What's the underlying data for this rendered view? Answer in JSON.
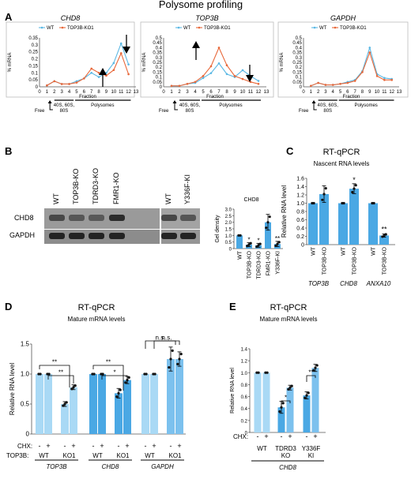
{
  "figure_title": "Polysome profiling",
  "colors": {
    "wt": "#5bb8e4",
    "ko": "#e8683a",
    "bar_light": "#a9d9f5",
    "bar_dark": "#4aa8e4",
    "dot": "#111111"
  },
  "panel_a": {
    "letter": "A",
    "xlabel": "Fraction",
    "ylabel": "% mRNA",
    "free_label": "Free",
    "subunit_label": "40S, 60S,",
    "subunit_label2": "80S",
    "polysome_label": "Polysomes"
  },
  "panel_b": {
    "letter": "B",
    "lanes": [
      "WT",
      "TOP3B-KO",
      "TDRD3-KO",
      "FMR1-KO",
      "WT",
      "Y336F-KI"
    ],
    "rows": [
      "CHD8",
      "GAPDH"
    ],
    "stars": [
      "*",
      "*",
      "",
      "**"
    ]
  },
  "panel_c": {
    "letter": "C",
    "title": "RT-qPCR",
    "subtitle": "Nascent RNA levels",
    "stars": [
      "*",
      "**"
    ]
  },
  "panel_d": {
    "letter": "D",
    "title": "RT-qPCR",
    "subtitle": "Mature mRNA levels",
    "chx_label": "CHX:",
    "top3b_label": "TOP3B:",
    "minus": "-",
    "plus": "+",
    "wt": "WT",
    "ko1": "KO1",
    "brackets": [
      "**",
      "**",
      "**",
      "*",
      "n.s.",
      "n.s."
    ]
  },
  "panel_e": {
    "letter": "E",
    "title": "RT-qPCR",
    "subtitle": "Mature mRNA levels",
    "chx_label": "CHX:",
    "minus": "-",
    "plus": "+",
    "groups": [
      "WT",
      "TDRD3",
      "KO",
      "Y336F",
      "KI"
    ],
    "gene": "CHD8",
    "stars": [
      "*",
      "**"
    ]
  },
  "chart_data": [
    {
      "type": "line",
      "title": "CHD8",
      "xlabel": "Fraction",
      "ylabel": "% mRNA",
      "x": [
        1,
        2,
        3,
        4,
        5,
        6,
        7,
        8,
        9,
        10,
        11,
        12
      ],
      "xlim": [
        0,
        13
      ],
      "ylim": [
        0,
        0.35
      ],
      "yticks": [
        "0",
        "0.05",
        "0.1",
        "0.15",
        "0.2",
        "0.25",
        "0.3",
        "0.35"
      ],
      "series": [
        {
          "name": "WT",
          "values": [
            0.01,
            0.04,
            0.02,
            0.02,
            0.04,
            0.06,
            0.1,
            0.07,
            0.1,
            0.17,
            0.31,
            0.16
          ]
        },
        {
          "name": "TOP3B-KO1",
          "values": [
            0.01,
            0.04,
            0.02,
            0.02,
            0.03,
            0.06,
            0.13,
            0.1,
            0.08,
            0.12,
            0.24,
            0.09
          ]
        }
      ]
    },
    {
      "type": "line",
      "title": "TOP3B",
      "xlabel": "Fraction",
      "ylabel": "% mRNA",
      "x": [
        1,
        2,
        3,
        4,
        5,
        6,
        7,
        8,
        9,
        10,
        11,
        12
      ],
      "xlim": [
        0,
        13
      ],
      "ylim": [
        0,
        0.5
      ],
      "yticks": [
        "0",
        "0.05",
        "0.1",
        "0.15",
        "0.2",
        "0.25",
        "0.3",
        "0.35",
        "0.4",
        "0.45",
        "0.5"
      ],
      "series": [
        {
          "name": "WT",
          "values": [
            0.01,
            0.01,
            0.03,
            0.04,
            0.09,
            0.14,
            0.24,
            0.13,
            0.1,
            0.17,
            0.11,
            0.06
          ]
        },
        {
          "name": "TOP3B-KO1",
          "values": [
            0.01,
            0.01,
            0.03,
            0.05,
            0.11,
            0.21,
            0.4,
            0.22,
            0.11,
            0.08,
            0.05,
            0.03
          ]
        }
      ]
    },
    {
      "type": "line",
      "title": "GAPDH",
      "xlabel": "Fraction",
      "ylabel": "% mRNA",
      "x": [
        1,
        2,
        3,
        4,
        5,
        6,
        7,
        8,
        9,
        10,
        11,
        12
      ],
      "xlim": [
        0,
        13
      ],
      "ylim": [
        0,
        0.5
      ],
      "yticks": [
        "0",
        "0.05",
        "0.1",
        "0.15",
        "0.2",
        "0.25",
        "0.3",
        "0.35",
        "0.4",
        "0.45",
        "0.5"
      ],
      "series": [
        {
          "name": "WT",
          "values": [
            0.01,
            0.04,
            0.02,
            0.02,
            0.03,
            0.05,
            0.07,
            0.16,
            0.4,
            0.13,
            0.09,
            0.08
          ]
        },
        {
          "name": "TOP3B-KO1",
          "values": [
            0.01,
            0.04,
            0.02,
            0.02,
            0.03,
            0.04,
            0.06,
            0.15,
            0.35,
            0.11,
            0.07,
            0.07
          ]
        }
      ]
    },
    {
      "type": "bar",
      "title": "CHD8",
      "ylabel": "Gel density",
      "categories": [
        "WT",
        "TOP3B-KO",
        "TDRD3-KO",
        "FMR1-KO",
        "Y336F-KI"
      ],
      "values": [
        1.0,
        0.3,
        0.25,
        2.0,
        0.35
      ],
      "errors": [
        0.0,
        0.15,
        0.15,
        0.6,
        0.2
      ],
      "ylim": [
        0,
        3.0
      ],
      "yticks": [
        "0",
        "0.5",
        "1.0",
        "1.5",
        "2.0",
        "2.5",
        "3.0"
      ]
    },
    {
      "type": "bar",
      "title": "RT-qPCR",
      "ylabel": "Relative RNA level",
      "categories": [
        "WT",
        "TOP3B-KO",
        "WT",
        "TOP3B-KO",
        "WT",
        "TOP3B-KO"
      ],
      "groups": [
        "TOP3B",
        "CHD8",
        "ANXA10"
      ],
      "values": [
        1.0,
        1.22,
        1.0,
        1.35,
        1.0,
        0.22
      ],
      "errors": [
        0.0,
        0.2,
        0.0,
        0.12,
        0.0,
        0.04
      ],
      "ylim": [
        0,
        1.6
      ],
      "yticks": [
        "0",
        "0.2",
        "0.4",
        "0.6",
        "0.8",
        "1.0",
        "1.2",
        "1.4",
        "1.6"
      ]
    },
    {
      "type": "bar",
      "title": "RT-qPCR",
      "ylabel": "Relative RNA level",
      "categories": [
        "WT -",
        "WT +",
        "KO1 -",
        "KO1 +",
        "WT -",
        "WT +",
        "KO1 -",
        "KO1 +",
        "WT -",
        "WT +",
        "KO1 -",
        "KO1 +"
      ],
      "groups": [
        "TOP3B",
        "CHD8",
        "GAPDH"
      ],
      "values": [
        1.0,
        1.0,
        0.5,
        0.78,
        1.0,
        1.0,
        0.68,
        0.9,
        1.0,
        1.0,
        1.25,
        1.25
      ],
      "errors": [
        0,
        0,
        0.04,
        0.04,
        0,
        0,
        0.08,
        0.06,
        0,
        0,
        0.2,
        0.12
      ],
      "ylim": [
        0,
        1.5
      ],
      "yticks": [
        "0",
        "0.5",
        "1.0",
        "1.5"
      ]
    },
    {
      "type": "bar",
      "title": "RT-qPCR",
      "ylabel": "Relative RNA level",
      "categories": [
        "WT -",
        "WT +",
        "TDRD3 KO -",
        "TDRD3 KO +",
        "Y336F KI -",
        "Y336F KI +"
      ],
      "values": [
        1.0,
        1.0,
        0.42,
        0.75,
        0.62,
        1.08
      ],
      "errors": [
        0,
        0,
        0.1,
        0.04,
        0.06,
        0.06
      ],
      "ylim": [
        0,
        1.4
      ],
      "yticks": [
        "0",
        "0.2",
        "0.4",
        "0.6",
        "0.8",
        "1.0",
        "1.2",
        "1.4"
      ]
    }
  ]
}
